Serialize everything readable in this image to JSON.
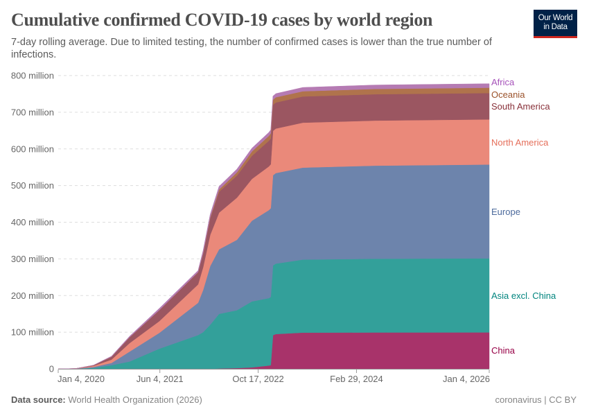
{
  "header": {
    "title": "Cumulative confirmed COVID-19 cases by world region",
    "subtitle": "7-day rolling average. Due to limited testing, the number of confirmed cases is lower than the true number of infections.",
    "logo_line1": "Our World",
    "logo_line2": "in Data"
  },
  "footer": {
    "source_label": "Data source:",
    "source_value": "World Health Organization (2026)",
    "license": "coronavirus | CC BY"
  },
  "chart_data": {
    "type": "area",
    "stacked": true,
    "title": "Cumulative confirmed COVID-19 cases by world region",
    "ylim": [
      0,
      800000000
    ],
    "y_ticks": [
      0,
      100000000,
      200000000,
      300000000,
      400000000,
      500000000,
      600000000,
      700000000,
      800000000
    ],
    "y_tick_labels": [
      "0",
      "100 million",
      "200 million",
      "300 million",
      "400 million",
      "500 million",
      "600 million",
      "700 million",
      "800 million"
    ],
    "x_ticks": [
      "2020-01-04",
      "2021-06-04",
      "2022-10-17",
      "2024-02-29",
      "2026-01-04"
    ],
    "x_tick_labels": [
      "Jan 4, 2020",
      "Jun 4, 2021",
      "Oct 17, 2022",
      "Feb 29, 2024",
      "Jan 4, 2026"
    ],
    "grid": "horizontal dashed",
    "legend": "right (inline labels)",
    "unit": "millions of cases",
    "x": [
      "2020-01-04",
      "2020-04-01",
      "2020-07-01",
      "2020-10-01",
      "2021-01-01",
      "2021-06-01",
      "2021-12-15",
      "2022-01-10",
      "2022-02-15",
      "2022-04-01",
      "2022-07-01",
      "2022-09-15",
      "2022-12-10",
      "2022-12-20",
      "2022-12-31",
      "2023-01-15",
      "2023-06-01",
      "2024-06-01",
      "2026-01-04"
    ],
    "series": [
      {
        "name": "China",
        "color": "#a8336a",
        "label_color": "#970046",
        "values": [
          0,
          0.08,
          0.09,
          0.09,
          0.1,
          0.1,
          0.1,
          0.1,
          0.2,
          1,
          2,
          4,
          9,
          10,
          92,
          95,
          99,
          99.3,
          99.4
        ]
      },
      {
        "name": "Asia excl. China",
        "color": "#33a09a",
        "label_color": "#00847e",
        "values": [
          0,
          0.1,
          2.5,
          10,
          20,
          55,
          92,
          100,
          120,
          149,
          158,
          180,
          184,
          186,
          190,
          192,
          199,
          201,
          202
        ]
      },
      {
        "name": "Europe",
        "color": "#6d84ac",
        "label_color": "#4c6a9c",
        "values": [
          0,
          0.45,
          2.6,
          6,
          27,
          43,
          88,
          115,
          160,
          176,
          192,
          220,
          240,
          242,
          246,
          247,
          251,
          254,
          256
        ]
      },
      {
        "name": "North America",
        "color": "#ea897a",
        "label_color": "#e56e5a",
        "values": [
          0,
          0.2,
          2.9,
          9,
          23,
          32,
          50,
          62,
          85,
          100,
          115,
          114,
          119,
          120,
          121,
          121.5,
          122.5,
          123,
          123
        ]
      },
      {
        "name": "South America",
        "color": "#9b5661",
        "label_color": "#883039",
        "values": [
          0,
          0.01,
          1.5,
          8,
          16,
          30,
          33,
          37,
          45,
          57,
          60,
          63,
          70,
          70.5,
          71,
          71.2,
          71.5,
          71.8,
          72
        ]
      },
      {
        "name": "Oceania",
        "color": "#b0734c",
        "label_color": "#9a5129",
        "values": [
          0,
          0.005,
          0.01,
          0.03,
          0.05,
          0.1,
          0.5,
          1.5,
          3,
          6,
          9,
          12,
          13.5,
          13.8,
          14,
          14.1,
          14.2,
          14.4,
          14.5
        ]
      },
      {
        "name": "Africa",
        "color": "#b57bb3",
        "label_color": "#a652ba",
        "values": [
          0,
          0.005,
          0.4,
          1.5,
          2.8,
          5,
          4.5,
          7,
          8,
          8.5,
          8.8,
          9,
          9.5,
          9.6,
          10,
          10.1,
          10.5,
          10.8,
          11
        ]
      }
    ]
  }
}
